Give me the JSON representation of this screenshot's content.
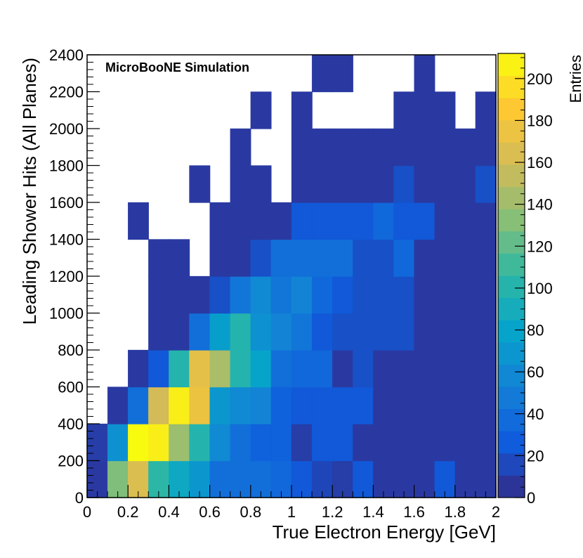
{
  "chart_data": {
    "type": "heatmap",
    "title": "",
    "annotation": "MicroBooNE Simulation",
    "xlabel": "True Electron Energy [GeV]",
    "ylabel": "Leading Shower Hits (All Planes)",
    "zlabel": "Entries",
    "xlim": [
      0,
      2
    ],
    "ylim": [
      0,
      2400
    ],
    "zlim": [
      0,
      212
    ],
    "x_bin_width": 0.1,
    "y_bin_width": 200,
    "x_ticks": [
      "0",
      "0.2",
      "0.4",
      "0.6",
      "0.8",
      "1",
      "1.2",
      "1.4",
      "1.6",
      "1.8",
      "2"
    ],
    "y_ticks": [
      "0",
      "200",
      "400",
      "600",
      "800",
      "1000",
      "1200",
      "1400",
      "1600",
      "1800",
      "2000",
      "2200",
      "2400"
    ],
    "z_ticks": [
      "0",
      "20",
      "40",
      "60",
      "80",
      "100",
      "120",
      "140",
      "160",
      "180",
      "200"
    ],
    "colorscale": [
      "#352a87",
      "#0f5cdd",
      "#1481d6",
      "#06a4ca",
      "#2eb7a4",
      "#87bf77",
      "#d1bb59",
      "#fec832",
      "#f9fb0e"
    ],
    "empty_bins": "white",
    "bins_description": "rows listed from lowest hits bin (0-200) upward; each row has 20 energy bins 0-2 GeV; null = empty",
    "z": [
      [
        8,
        130,
        165,
        105,
        85,
        70,
        40,
        40,
        40,
        35,
        25,
        15,
        10,
        25,
        8,
        8,
        8,
        25,
        8,
        8
      ],
      [
        10,
        65,
        215,
        205,
        140,
        100,
        60,
        40,
        30,
        30,
        10,
        25,
        25,
        8,
        8,
        8,
        8,
        8,
        8,
        8
      ],
      [
        null,
        8,
        40,
        160,
        205,
        175,
        70,
        60,
        55,
        30,
        25,
        25,
        25,
        25,
        8,
        8,
        8,
        8,
        8,
        8
      ],
      [
        null,
        null,
        8,
        25,
        100,
        170,
        145,
        100,
        80,
        40,
        35,
        35,
        8,
        20,
        8,
        8,
        8,
        8,
        8,
        8
      ],
      [
        null,
        null,
        null,
        8,
        8,
        40,
        75,
        100,
        65,
        55,
        45,
        25,
        20,
        20,
        20,
        20,
        8,
        8,
        8,
        8
      ],
      [
        null,
        null,
        null,
        8,
        8,
        8,
        20,
        45,
        60,
        45,
        55,
        35,
        25,
        20,
        20,
        20,
        8,
        8,
        8,
        8
      ],
      [
        null,
        null,
        null,
        8,
        8,
        null,
        8,
        8,
        20,
        40,
        40,
        40,
        40,
        20,
        20,
        35,
        8,
        8,
        8,
        8
      ],
      [
        null,
        null,
        8,
        null,
        null,
        null,
        8,
        8,
        8,
        8,
        25,
        25,
        25,
        25,
        35,
        25,
        25,
        8,
        8,
        8
      ],
      [
        null,
        null,
        null,
        null,
        null,
        8,
        null,
        8,
        8,
        null,
        8,
        8,
        8,
        8,
        8,
        20,
        8,
        8,
        8,
        20
      ],
      [
        null,
        null,
        null,
        null,
        null,
        null,
        null,
        8,
        null,
        null,
        8,
        8,
        8,
        8,
        8,
        8,
        8,
        8,
        8,
        8
      ],
      [
        null,
        null,
        null,
        null,
        null,
        null,
        null,
        null,
        8,
        null,
        8,
        null,
        null,
        null,
        null,
        8,
        8,
        8,
        null,
        8
      ],
      [
        null,
        null,
        null,
        null,
        null,
        null,
        null,
        null,
        null,
        null,
        null,
        8,
        8,
        null,
        null,
        null,
        8,
        null,
        null,
        null
      ]
    ]
  }
}
